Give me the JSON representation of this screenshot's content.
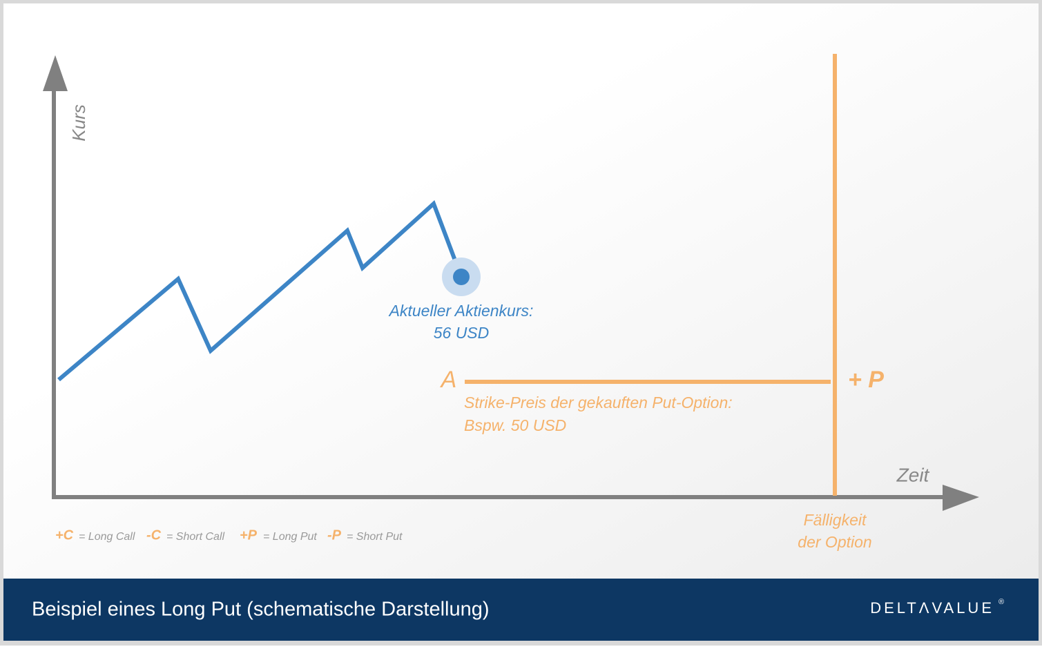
{
  "axes": {
    "y_label": "Kurs",
    "x_label": "Zeit"
  },
  "current_price": {
    "label": "Aktueller Aktienkurs:",
    "value": "56 USD"
  },
  "strike": {
    "marker": "A",
    "label": "Strike-Preis der gekauften Put-Option:",
    "value": "Bspw. 50 USD",
    "position": "+ P"
  },
  "expiry": {
    "line1": "Fälligkeit",
    "line2": "der Option"
  },
  "legend": [
    {
      "symbol": "+C",
      "text": "= Long Call"
    },
    {
      "symbol": "-C",
      "text": "= Short Call"
    },
    {
      "symbol": "+P",
      "text": "= Long Put"
    },
    {
      "symbol": "-P",
      "text": "= Short Put"
    }
  ],
  "footer": {
    "title": "Beispiel eines Long Put (schematische Darstellung)",
    "logo": "DELTΛVALUE",
    "logo_mark": "®"
  }
}
